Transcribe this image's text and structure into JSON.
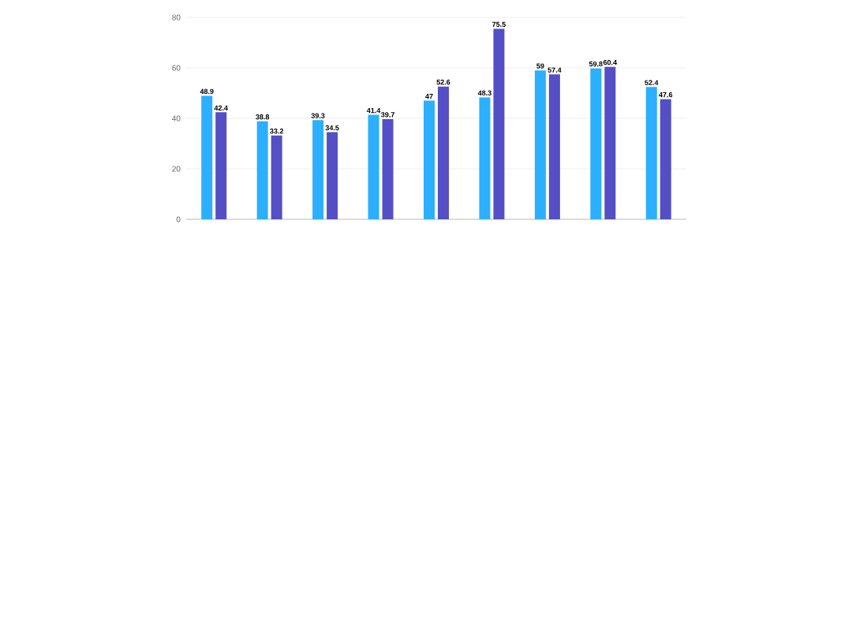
{
  "chart_data": {
    "type": "bar",
    "categories": [
      null,
      null,
      null,
      null,
      null,
      null,
      null,
      null,
      null
    ],
    "series": [
      {
        "color": "#2caffe",
        "values": [
          48.9,
          38.8,
          39.3,
          41.4,
          47,
          48.3,
          59,
          59.8,
          52.4
        ]
      },
      {
        "color": "#544fc5",
        "values": [
          42.4,
          33.2,
          34.5,
          39.7,
          52.6,
          75.5,
          57.4,
          60.4,
          47.6
        ]
      }
    ],
    "ylim": [
      0,
      80
    ],
    "yticks": [
      0,
      20,
      40,
      60,
      80
    ],
    "grid": "y",
    "data_labels": true
  }
}
